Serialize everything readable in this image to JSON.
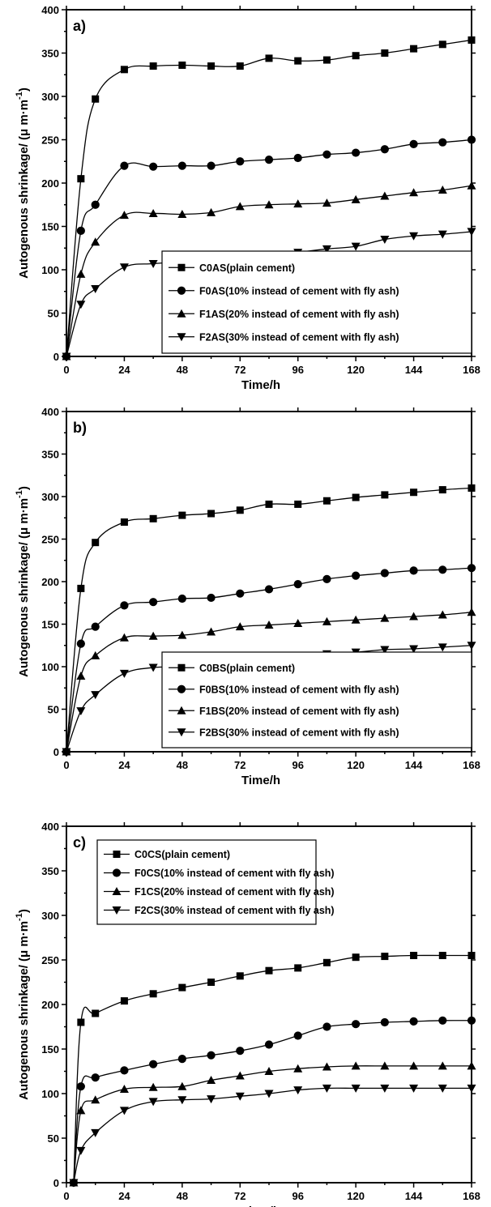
{
  "chart_data": [
    {
      "type": "line",
      "panel_label": "a)",
      "xlabel": "Time/h",
      "ylabel": "Autogenous shrinkage/ (μ m·m",
      "ylabel_exp": "-1",
      "ylabel_close": ")",
      "xlim": [
        0,
        168
      ],
      "ylim": [
        0,
        400
      ],
      "xticks": [
        0,
        24,
        48,
        72,
        96,
        120,
        144,
        168
      ],
      "yticks": [
        0,
        50,
        100,
        150,
        200,
        250,
        300,
        350,
        400
      ],
      "legend": {
        "placement": "lower-right"
      },
      "series": [
        {
          "name": "C0AS(plain cement)",
          "marker": "square",
          "x": [
            0,
            6,
            12,
            24,
            36,
            48,
            60,
            72,
            84,
            96,
            108,
            120,
            132,
            144,
            156,
            168
          ],
          "y": [
            0,
            205,
            297,
            331,
            335,
            336,
            335,
            335,
            344,
            341,
            342,
            347,
            350,
            355,
            360,
            365
          ]
        },
        {
          "name": "F0AS(10% instead of cement with fly ash)",
          "marker": "circle",
          "x": [
            0,
            6,
            12,
            24,
            36,
            48,
            60,
            72,
            84,
            96,
            108,
            120,
            132,
            144,
            156,
            168
          ],
          "y": [
            0,
            145,
            175,
            220,
            219,
            220,
            220,
            225,
            227,
            229,
            233,
            235,
            239,
            245,
            247,
            250
          ]
        },
        {
          "name": "F1AS(20% instead of cement with fly ash)",
          "marker": "triangle-up",
          "x": [
            0,
            6,
            12,
            24,
            36,
            48,
            60,
            72,
            84,
            96,
            108,
            120,
            132,
            144,
            156,
            168
          ],
          "y": [
            0,
            95,
            132,
            163,
            165,
            164,
            166,
            173,
            175,
            176,
            177,
            181,
            185,
            189,
            192,
            197
          ]
        },
        {
          "name": "F2AS(30% instead of cement with fly ash)",
          "marker": "triangle-down",
          "x": [
            0,
            6,
            12,
            24,
            36,
            48,
            60,
            72,
            84,
            96,
            108,
            120,
            132,
            144,
            156,
            168
          ],
          "y": [
            0,
            60,
            78,
            103,
            107,
            109,
            111,
            113,
            115,
            120,
            124,
            127,
            135,
            139,
            141,
            144
          ]
        }
      ]
    },
    {
      "type": "line",
      "panel_label": "b)",
      "xlabel": "Time/h",
      "ylabel": "Autogenous shrinkage/ (μ m·m",
      "ylabel_exp": "-1",
      "ylabel_close": ")",
      "xlim": [
        0,
        168
      ],
      "ylim": [
        0,
        400
      ],
      "xticks": [
        0,
        24,
        48,
        72,
        96,
        120,
        144,
        168
      ],
      "yticks": [
        0,
        50,
        100,
        150,
        200,
        250,
        300,
        350,
        400
      ],
      "legend": {
        "placement": "lower-right"
      },
      "series": [
        {
          "name": "C0BS(plain cement)",
          "marker": "square",
          "x": [
            0,
            6,
            12,
            24,
            36,
            48,
            60,
            72,
            84,
            96,
            108,
            120,
            132,
            144,
            156,
            168
          ],
          "y": [
            0,
            192,
            246,
            270,
            274,
            278,
            280,
            284,
            291,
            291,
            295,
            299,
            302,
            305,
            308,
            310
          ]
        },
        {
          "name": "F0BS(10% instead of cement with fly ash)",
          "marker": "circle",
          "x": [
            0,
            6,
            12,
            24,
            36,
            48,
            60,
            72,
            84,
            96,
            108,
            120,
            132,
            144,
            156,
            168
          ],
          "y": [
            0,
            127,
            147,
            172,
            176,
            180,
            181,
            186,
            191,
            197,
            203,
            207,
            210,
            213,
            214,
            216
          ]
        },
        {
          "name": "F1BS(20% instead of cement with fly ash)",
          "marker": "triangle-up",
          "x": [
            0,
            6,
            12,
            24,
            36,
            48,
            60,
            72,
            84,
            96,
            108,
            120,
            132,
            144,
            156,
            168
          ],
          "y": [
            0,
            89,
            113,
            134,
            136,
            137,
            141,
            147,
            149,
            151,
            153,
            155,
            157,
            159,
            161,
            164
          ]
        },
        {
          "name": "F2BS(30% instead of cement with fly ash)",
          "marker": "triangle-down",
          "x": [
            0,
            6,
            12,
            24,
            36,
            48,
            60,
            72,
            84,
            96,
            108,
            120,
            132,
            144,
            156,
            168
          ],
          "y": [
            0,
            48,
            67,
            92,
            99,
            100,
            103,
            105,
            108,
            112,
            115,
            117,
            120,
            121,
            123,
            125
          ]
        }
      ]
    },
    {
      "type": "line",
      "panel_label": "c)",
      "xlabel": "Time/h",
      "ylabel": "Autogenous shrinkage/ (μ m·m",
      "ylabel_exp": "-1",
      "ylabel_close": ")",
      "xlim": [
        0,
        168
      ],
      "ylim": [
        0,
        400
      ],
      "xticks": [
        0,
        24,
        48,
        72,
        96,
        120,
        144,
        168
      ],
      "yticks": [
        0,
        50,
        100,
        150,
        200,
        250,
        300,
        350,
        400
      ],
      "legend": {
        "placement": "upper-left"
      },
      "series": [
        {
          "name": "C0CS(plain cement)",
          "marker": "square",
          "x": [
            3,
            6,
            12,
            24,
            36,
            48,
            60,
            72,
            84,
            96,
            108,
            120,
            132,
            144,
            156,
            168
          ],
          "y": [
            0,
            180,
            190,
            204,
            212,
            219,
            225,
            232,
            238,
            241,
            247,
            253,
            254,
            255,
            255,
            255
          ]
        },
        {
          "name": "F0CS(10% instead of cement with fly ash)",
          "marker": "circle",
          "x": [
            3,
            6,
            12,
            24,
            36,
            48,
            60,
            72,
            84,
            96,
            108,
            120,
            132,
            144,
            156,
            168
          ],
          "y": [
            0,
            108,
            118,
            126,
            133,
            139,
            143,
            148,
            155,
            165,
            175,
            178,
            180,
            181,
            182,
            182
          ]
        },
        {
          "name": "F1CS(20% instead of cement with fly ash)",
          "marker": "triangle-up",
          "x": [
            3,
            6,
            12,
            24,
            36,
            48,
            60,
            72,
            84,
            96,
            108,
            120,
            132,
            144,
            156,
            168
          ],
          "y": [
            0,
            81,
            93,
            105,
            107,
            108,
            115,
            120,
            125,
            128,
            130,
            131,
            131,
            131,
            131,
            131
          ]
        },
        {
          "name": "F2CS(30% instead of cement with fly ash)",
          "marker": "triangle-down",
          "x": [
            3,
            6,
            12,
            24,
            36,
            48,
            60,
            72,
            84,
            96,
            108,
            120,
            132,
            144,
            156,
            168
          ],
          "y": [
            0,
            36,
            56,
            81,
            91,
            93,
            94,
            97,
            100,
            104,
            106,
            106,
            106,
            106,
            106,
            106
          ]
        }
      ]
    }
  ]
}
